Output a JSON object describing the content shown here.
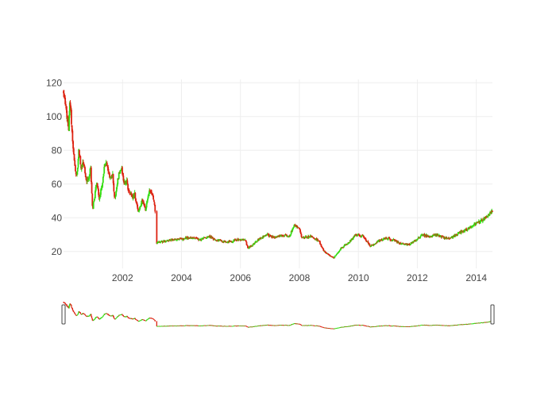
{
  "chart_data": {
    "type": "candlestick",
    "x_ticks": [
      "2002",
      "2004",
      "2006",
      "2008",
      "2010",
      "2012",
      "2014"
    ],
    "y_ticks": [
      "20",
      "40",
      "60",
      "80",
      "100",
      "120"
    ],
    "xlim": [
      "2000-01-01",
      "2014-07-20"
    ],
    "ylim": [
      10,
      122
    ],
    "gap": [
      "2003-02-10",
      "2003-02-25"
    ],
    "increasing_color": "#33dd11",
    "decreasing_color": "#dd2211",
    "rangeslider": true,
    "grid": true,
    "price_keypoints": [
      [
        "2000-01-01",
        115
      ],
      [
        "2000-01-20",
        108
      ],
      [
        "2000-02-15",
        99
      ],
      [
        "2000-03-05",
        92
      ],
      [
        "2000-03-20",
        113
      ],
      [
        "2000-04-10",
        93
      ],
      [
        "2000-05-01",
        80
      ],
      [
        "2000-05-20",
        70
      ],
      [
        "2000-06-15",
        65
      ],
      [
        "2000-07-10",
        80
      ],
      [
        "2000-08-05",
        70
      ],
      [
        "2000-09-01",
        73
      ],
      [
        "2000-10-01",
        64
      ],
      [
        "2000-11-01",
        61
      ],
      [
        "2000-12-01",
        70
      ],
      [
        "2000-12-25",
        45
      ],
      [
        "2001-01-20",
        52
      ],
      [
        "2001-02-15",
        62
      ],
      [
        "2001-03-15",
        52
      ],
      [
        "2001-04-20",
        58
      ],
      [
        "2001-05-20",
        70
      ],
      [
        "2001-06-20",
        73
      ],
      [
        "2001-07-20",
        65
      ],
      [
        "2001-09-01",
        65
      ],
      [
        "2001-09-25",
        50
      ],
      [
        "2001-10-20",
        58
      ],
      [
        "2001-11-20",
        67
      ],
      [
        "2001-12-20",
        69
      ],
      [
        "2002-01-20",
        60
      ],
      [
        "2002-02-20",
        62
      ],
      [
        "2002-03-20",
        55
      ],
      [
        "2002-05-01",
        52
      ],
      [
        "2002-06-01",
        54
      ],
      [
        "2002-07-15",
        44
      ],
      [
        "2002-09-01",
        50
      ],
      [
        "2002-10-15",
        45
      ],
      [
        "2002-12-01",
        57
      ],
      [
        "2003-01-01",
        55
      ],
      [
        "2003-02-05",
        47
      ],
      [
        "2003-03-01",
        25
      ],
      [
        "2003-06-01",
        26
      ],
      [
        "2003-09-01",
        27
      ],
      [
        "2003-12-01",
        27
      ],
      [
        "2004-03-01",
        28
      ],
      [
        "2004-06-01",
        28
      ],
      [
        "2004-09-01",
        27
      ],
      [
        "2004-12-01",
        29
      ],
      [
        "2005-03-01",
        27
      ],
      [
        "2005-06-01",
        26
      ],
      [
        "2005-09-01",
        26
      ],
      [
        "2005-12-01",
        27
      ],
      [
        "2006-03-01",
        27
      ],
      [
        "2006-04-01",
        22
      ],
      [
        "2006-06-01",
        24
      ],
      [
        "2006-09-01",
        28
      ],
      [
        "2006-12-01",
        30
      ],
      [
        "2007-03-01",
        28
      ],
      [
        "2007-06-01",
        30
      ],
      [
        "2007-09-01",
        29
      ],
      [
        "2007-11-01",
        36
      ],
      [
        "2008-01-01",
        33
      ],
      [
        "2008-02-01",
        28
      ],
      [
        "2008-06-01",
        29
      ],
      [
        "2008-09-01",
        26
      ],
      [
        "2008-11-01",
        20
      ],
      [
        "2009-01-01",
        18
      ],
      [
        "2009-03-01",
        16
      ],
      [
        "2009-06-01",
        22
      ],
      [
        "2009-09-01",
        25
      ],
      [
        "2009-12-01",
        30
      ],
      [
        "2010-03-01",
        29
      ],
      [
        "2010-06-01",
        23
      ],
      [
        "2010-09-01",
        26
      ],
      [
        "2010-12-01",
        28
      ],
      [
        "2011-03-01",
        27
      ],
      [
        "2011-06-01",
        25
      ],
      [
        "2011-09-01",
        24
      ],
      [
        "2011-12-01",
        26
      ],
      [
        "2012-03-01",
        30
      ],
      [
        "2012-06-01",
        29
      ],
      [
        "2012-09-01",
        30
      ],
      [
        "2012-12-01",
        28
      ],
      [
        "2013-03-01",
        28
      ],
      [
        "2013-06-01",
        31
      ],
      [
        "2013-09-01",
        33
      ],
      [
        "2013-12-01",
        36
      ],
      [
        "2014-03-01",
        38
      ],
      [
        "2014-07-20",
        44
      ]
    ]
  },
  "colors": {
    "grid": "#eeeeee",
    "tick_text": "#444444",
    "handle_fill": "#ffffff",
    "handle_stroke": "#444444"
  }
}
